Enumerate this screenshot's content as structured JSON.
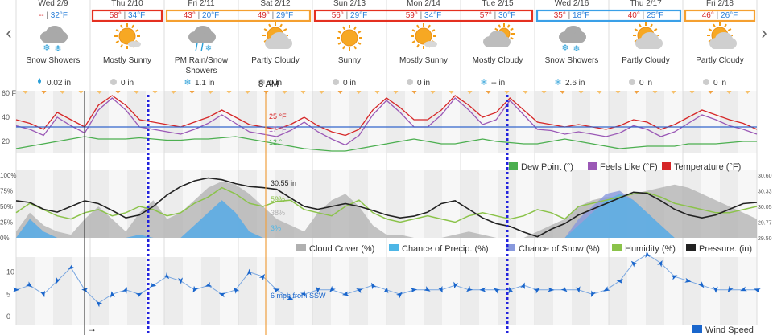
{
  "days": [
    {
      "date": "Wed 2/9",
      "hi": "--",
      "lo": "32°F",
      "cond": "Snow Showers",
      "icon": "snow-cloud-icon",
      "precip": "0.02 in",
      "precip_icon": "rain-drop-icon"
    },
    {
      "date": "Thu 2/10",
      "hi": "58°",
      "lo": "34°F",
      "cond": "Mostly Sunny",
      "icon": "mostly-sunny-icon",
      "precip": "0 in",
      "precip_icon": "no-precip-icon"
    },
    {
      "date": "Fri 2/11",
      "hi": "43°",
      "lo": "20°F",
      "cond": "PM Rain/Snow Showers",
      "cond_line1": "PM Rain/Snow",
      "cond_line2": "Showers",
      "icon": "rain-snow-icon",
      "precip": "1.1 in",
      "precip_icon": "snowflake-icon"
    },
    {
      "date": "Sat 2/12",
      "hi": "49°",
      "lo": "29°F",
      "cond": "Partly Cloudy",
      "icon": "partly-cloudy-sun-icon",
      "precip": "0 in",
      "precip_icon": "no-precip-icon"
    },
    {
      "date": "Sun 2/13",
      "hi": "56°",
      "lo": "29°F",
      "cond": "Sunny",
      "icon": "sunny-icon",
      "precip": "0 in",
      "precip_icon": "no-precip-icon"
    },
    {
      "date": "Mon 2/14",
      "hi": "59°",
      "lo": "34°F",
      "cond": "Mostly Sunny",
      "icon": "mostly-sunny-icon",
      "precip": "0 in",
      "precip_icon": "no-precip-icon"
    },
    {
      "date": "Tue 2/15",
      "hi": "57°",
      "lo": "30°F",
      "cond": "Mostly Cloudy",
      "icon": "mostly-cloudy-icon",
      "precip": "-- in",
      "precip_icon": "snowflake-icon"
    },
    {
      "date": "Wed 2/16",
      "hi": "35°",
      "lo": "18°F",
      "cond": "Snow Showers",
      "icon": "snow-cloud-icon",
      "precip": "2.6 in",
      "precip_icon": "snowflake-icon"
    },
    {
      "date": "Thu 2/17",
      "hi": "40°",
      "lo": "25°F",
      "cond": "Partly Cloudy",
      "icon": "partly-cloudy-sun-icon",
      "precip": "0 in",
      "precip_icon": "no-precip-icon"
    },
    {
      "date": "Fri 2/18",
      "hi": "46°",
      "lo": "26°F",
      "cond": "Partly Cloudy",
      "icon": "partly-cloudy-sun-icon",
      "precip": "0 in",
      "precip_icon": "no-precip-icon"
    }
  ],
  "cursor_label": "8 AM",
  "nav": {
    "prev": "‹",
    "next": "›"
  },
  "colors": {
    "temp": "#d62728",
    "feels": "#9b59b6",
    "dew": "#4caf50",
    "humidity": "#8bc34a",
    "pressure": "#222222",
    "cloud": "#b0b0b0",
    "precip": "#4db6e6",
    "snow": "#8899dd",
    "wind": "#1a66cc",
    "trend": "#3366cc",
    "box_red": "#e53020",
    "box_orange": "#f5a030",
    "box_blue": "#3aa0e8",
    "cursor": "#f0a040",
    "marker": "#2222dd"
  },
  "highlight_boxes": [
    {
      "days": [
        1
      ],
      "color": "box_red"
    },
    {
      "days": [
        2,
        3
      ],
      "color": "box_orange"
    },
    {
      "days": [
        4,
        5,
        6
      ],
      "color": "box_red"
    },
    {
      "days": [
        7,
        8
      ],
      "color": "box_blue"
    },
    {
      "days": [
        9
      ],
      "color": "box_orange"
    }
  ],
  "temp_chart": {
    "y_ticks": [
      "60 F",
      "40",
      "20"
    ],
    "y_tick_values": [
      60,
      40,
      20
    ],
    "ylim": [
      10,
      62
    ],
    "series": [
      {
        "name": "Temperature (°F)",
        "color": "temp",
        "values": [
          38,
          35,
          30,
          44,
          38,
          32,
          50,
          58,
          50,
          38,
          36,
          34,
          32,
          36,
          40,
          46,
          40,
          34,
          32,
          30,
          34,
          40,
          33,
          28,
          25,
          30,
          46,
          56,
          48,
          38,
          38,
          46,
          58,
          50,
          40,
          44,
          56,
          46,
          36,
          34,
          32,
          34,
          32,
          30,
          33,
          38,
          36,
          30,
          34,
          40,
          46,
          42,
          38,
          35,
          30
        ]
      },
      {
        "name": "Feels Like (°F)",
        "color": "feels",
        "values": [
          33,
          30,
          25,
          40,
          33,
          27,
          46,
          56,
          46,
          32,
          30,
          28,
          26,
          30,
          35,
          42,
          35,
          28,
          26,
          24,
          29,
          36,
          28,
          22,
          17,
          25,
          42,
          54,
          44,
          32,
          32,
          42,
          56,
          46,
          34,
          38,
          54,
          42,
          30,
          29,
          26,
          28,
          26,
          24,
          27,
          33,
          30,
          24,
          28,
          35,
          42,
          38,
          33,
          30,
          26
        ]
      },
      {
        "name": "Dew Point (°)",
        "color": "dew",
        "values": [
          14,
          16,
          18,
          20,
          22,
          24,
          22,
          22,
          22,
          23,
          22,
          21,
          21,
          22,
          22,
          23,
          24,
          22,
          20,
          18,
          16,
          14,
          13,
          12,
          12,
          14,
          16,
          18,
          20,
          22,
          20,
          18,
          18,
          20,
          22,
          20,
          19,
          18,
          18,
          20,
          22,
          20,
          18,
          16,
          14,
          15,
          16,
          16,
          16,
          18,
          18,
          18,
          19,
          20,
          20
        ]
      }
    ],
    "trend_value": 32,
    "callouts": [
      {
        "text": "25 °F",
        "color": "temp"
      },
      {
        "text": "17 °F",
        "color": "feels"
      },
      {
        "text": "12 °",
        "color": "dew"
      }
    ],
    "legend": [
      {
        "text": "Dew Point (°)",
        "color": "dew"
      },
      {
        "text": "Feels Like (°F)",
        "color": "feels"
      },
      {
        "text": "Temperature (°F)",
        "color": "temp"
      }
    ]
  },
  "mid_chart": {
    "y_ticks_left": [
      "100%",
      "75%",
      "50%",
      "25%",
      "0%"
    ],
    "y_tick_left_values": [
      100,
      75,
      50,
      25,
      0
    ],
    "y_ticks_right": [
      "30.60",
      "30.33",
      "30.05",
      "29.77",
      "29.50"
    ],
    "plim": [
      29.5,
      30.6
    ],
    "cloud": [
      10,
      40,
      20,
      10,
      5,
      30,
      50,
      30,
      10,
      40,
      60,
      30,
      40,
      60,
      80,
      90,
      85,
      70,
      50,
      30,
      20,
      10,
      40,
      60,
      70,
      50,
      20,
      5,
      5,
      0,
      0,
      0,
      5,
      10,
      5,
      0,
      0,
      0,
      10,
      20,
      30,
      50,
      60,
      65,
      65,
      70,
      75,
      80,
      85,
      80,
      70,
      60,
      50,
      40,
      30
    ],
    "precip": [
      0,
      30,
      10,
      0,
      0,
      0,
      0,
      0,
      0,
      5,
      0,
      0,
      0,
      20,
      40,
      60,
      40,
      10,
      0,
      0,
      0,
      0,
      0,
      0,
      0,
      0,
      0,
      0,
      0,
      0,
      0,
      0,
      0,
      0,
      0,
      0,
      0,
      0,
      0,
      0,
      0,
      20,
      40,
      60,
      70,
      60,
      40,
      20,
      0,
      0,
      0,
      0,
      0,
      0,
      0
    ],
    "snow": [
      0,
      30,
      10,
      0,
      0,
      0,
      0,
      0,
      0,
      5,
      0,
      0,
      0,
      20,
      40,
      60,
      40,
      10,
      0,
      0,
      0,
      0,
      0,
      0,
      0,
      0,
      0,
      0,
      0,
      0,
      0,
      0,
      0,
      0,
      0,
      0,
      0,
      0,
      0,
      0,
      0,
      30,
      50,
      70,
      75,
      60,
      40,
      20,
      0,
      0,
      0,
      0,
      0,
      0,
      0
    ],
    "humidity": [
      40,
      55,
      45,
      35,
      30,
      40,
      45,
      35,
      40,
      50,
      45,
      35,
      40,
      55,
      65,
      80,
      70,
      55,
      50,
      58,
      60,
      45,
      40,
      35,
      50,
      60,
      40,
      30,
      25,
      30,
      35,
      30,
      25,
      35,
      40,
      35,
      30,
      35,
      45,
      40,
      30,
      50,
      55,
      60,
      65,
      70,
      72,
      65,
      55,
      50,
      45,
      40,
      40,
      45,
      50
    ],
    "pressure": [
      30.15,
      30.12,
      30.0,
      29.95,
      30.05,
      30.15,
      30.1,
      29.98,
      29.85,
      29.9,
      30.05,
      30.25,
      30.4,
      30.5,
      30.55,
      30.52,
      30.45,
      30.4,
      30.38,
      30.35,
      30.2,
      30.05,
      30.0,
      30.05,
      30.1,
      30.05,
      29.98,
      29.9,
      29.85,
      29.88,
      29.95,
      30.1,
      30.15,
      30.0,
      29.85,
      29.75,
      29.7,
      29.6,
      29.52,
      29.65,
      29.75,
      29.9,
      30.0,
      30.1,
      30.2,
      30.3,
      30.28,
      30.15,
      30.0,
      29.9,
      29.85,
      29.9,
      30.0,
      30.1,
      30.12
    ],
    "callouts": [
      {
        "text": "30.55 in",
        "color": "pressure"
      },
      {
        "text": "59%",
        "color": "humidity"
      },
      {
        "text": "38%",
        "color": "cloud"
      },
      {
        "text": "3%",
        "color": "precip"
      }
    ],
    "legend": [
      {
        "text": "Cloud Cover (%)",
        "color": "cloud"
      },
      {
        "text": "Chance of Precip. (%)",
        "color": "precip"
      },
      {
        "text": "Chance of Snow (%)",
        "color": "snow"
      },
      {
        "text": "Humidity (%)",
        "color": "humidity"
      },
      {
        "text": "Pressure. (in)",
        "color": "pressure"
      }
    ]
  },
  "wind_chart": {
    "y_ticks": [
      "10",
      "5",
      "0"
    ],
    "y_tick_values": [
      10,
      5,
      0
    ],
    "ylim": [
      0,
      13
    ],
    "speed": [
      6,
      7,
      5,
      8,
      11,
      6,
      3,
      5,
      6,
      5,
      7,
      9,
      8,
      6,
      7,
      5,
      6,
      10,
      9,
      6,
      4,
      5,
      6,
      6,
      5,
      6,
      7,
      6,
      5,
      6,
      6,
      6,
      7,
      6,
      6,
      6,
      6,
      7,
      6,
      6,
      6,
      6,
      5,
      6,
      8,
      12,
      14,
      12,
      9,
      8,
      7,
      6,
      6,
      6,
      6
    ],
    "callout": "6 mph from SSW",
    "arrow": "→",
    "legend": [
      {
        "text": "Wind Speed",
        "color": "wind"
      }
    ]
  }
}
